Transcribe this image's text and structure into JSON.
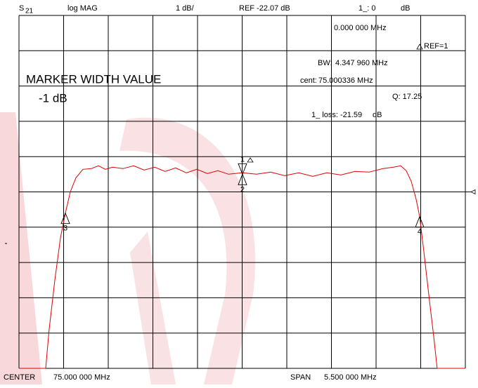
{
  "header": {
    "param": "S",
    "param_sub": "21",
    "format": "log MAG",
    "scale": "1 dB/",
    "ref": "REF -22.07 dB",
    "marker_label": "1_: 0",
    "marker_unit": "dB"
  },
  "readouts": {
    "marker_freq": "0.000 000 MHz",
    "ref_marker": "REF=1",
    "bw_label": "BW:",
    "bw_value": "4.347 960 MHz",
    "cent_label": "cent:",
    "cent_value": "75.000336 MHz",
    "q": "Q: 17.25",
    "loss": "1_ loss: -21.59",
    "loss_unit": "dB"
  },
  "annotation": {
    "title": "MARKER WIDTH VALUE",
    "width_value": "-1 dB"
  },
  "footer": {
    "center_label": "CENTER",
    "center_value": "75.000 000 MHz",
    "span_label": "SPAN",
    "span_value": "5.500 000 MHz"
  },
  "chart_data": {
    "type": "line",
    "xlim": [
      72.25,
      77.75
    ],
    "ylim": [
      -27.07,
      -17.07
    ],
    "x": [
      72.25,
      72.579,
      72.622,
      72.692,
      72.761,
      72.822,
      72.882,
      72.952,
      73.038,
      73.142,
      73.229,
      73.315,
      73.402,
      73.532,
      73.662,
      73.792,
      73.922,
      74.051,
      74.181,
      74.311,
      74.441,
      74.571,
      74.701,
      74.831,
      75.004,
      75.177,
      75.35,
      75.524,
      75.697,
      75.87,
      76.043,
      76.217,
      76.39,
      76.563,
      76.736,
      76.866,
      76.953,
      77.022,
      77.083,
      77.143,
      77.187,
      77.239,
      77.299,
      77.36,
      77.403,
      77.75
    ],
    "series": [
      {
        "color": "#e00000",
        "values": [
          -27.07,
          -27.07,
          -25.97,
          -24.57,
          -23.37,
          -22.67,
          -22.07,
          -21.67,
          -21.43,
          -21.41,
          -21.33,
          -21.43,
          -21.37,
          -21.41,
          -21.33,
          -21.45,
          -21.37,
          -21.49,
          -21.39,
          -21.53,
          -21.43,
          -21.55,
          -21.47,
          -21.57,
          -21.53,
          -21.57,
          -21.51,
          -21.61,
          -21.53,
          -21.63,
          -21.53,
          -21.59,
          -21.49,
          -21.51,
          -21.41,
          -21.37,
          -21.33,
          -21.47,
          -21.77,
          -22.27,
          -22.77,
          -23.77,
          -24.97,
          -26.17,
          -27.07,
          -27.07
        ]
      }
    ],
    "markers": [
      {
        "label": "1",
        "x": 75.004,
        "value": -21.57,
        "dir": "down"
      },
      {
        "label": "2",
        "x": 75.004,
        "value": -21.57,
        "dir": "up"
      },
      {
        "label": "3",
        "x": 72.822,
        "value": -22.67,
        "dir": "up"
      },
      {
        "label": "4",
        "x": 77.187,
        "value": -22.77,
        "dir": "up"
      }
    ],
    "reference_value": -22.07
  }
}
